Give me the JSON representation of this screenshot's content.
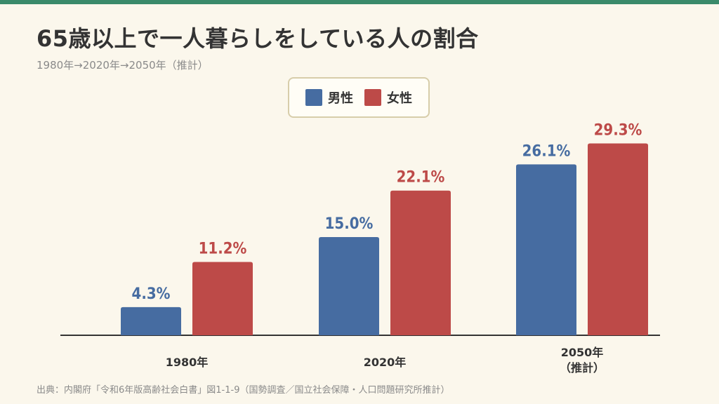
{
  "title": "65歳以上で一人暮らしをしている人の割合",
  "subtitle": "1980年→2020年→2050年（推計）",
  "legend": {
    "male_label": "男性",
    "female_label": "女性"
  },
  "colors": {
    "male": "#466ca1",
    "female": "#bd4a48",
    "accent_bar": "#3a8a6a"
  },
  "source": "出典：内閣府「令和6年版高齢社会白書」図1-1-9（国勢調査／国立社会保障・人口問題研究所推計）",
  "chart_data": {
    "type": "bar",
    "categories": [
      [
        "1980年"
      ],
      [
        "2020年"
      ],
      [
        "2050年",
        "（推計）"
      ]
    ],
    "series": [
      {
        "name": "男性",
        "values": [
          4.3,
          15.0,
          26.1
        ],
        "labels": [
          "4.3%",
          "15.0%",
          "26.1%"
        ]
      },
      {
        "name": "女性",
        "values": [
          11.2,
          22.1,
          29.3
        ],
        "labels": [
          "11.2%",
          "22.1%",
          "29.3%"
        ]
      }
    ],
    "ylim": [
      0,
      30
    ],
    "grid": false,
    "legend_position": "top-center"
  }
}
